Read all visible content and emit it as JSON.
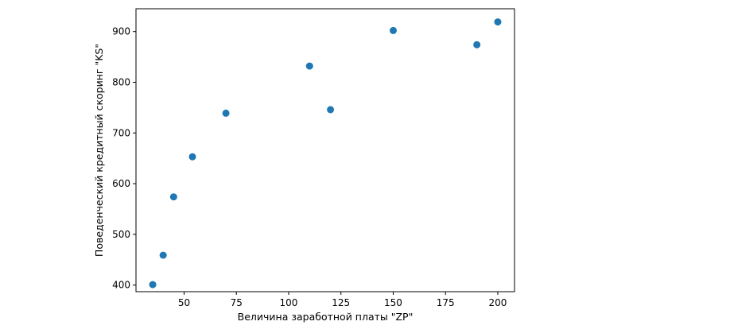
{
  "chart_data": {
    "type": "scatter",
    "title": "",
    "xlabel": "Величина заработной платы \"ZP\"",
    "ylabel": "Поведенческий кредитный скоринг \"KS\"",
    "xlim": [
      27,
      208
    ],
    "ylim": [
      387,
      945
    ],
    "xticks": [
      50,
      75,
      100,
      125,
      150,
      175,
      200
    ],
    "yticks": [
      400,
      500,
      600,
      700,
      800,
      900
    ],
    "grid": false,
    "legend": "none",
    "marker_color": "#1f77b4",
    "series": [
      {
        "x": [
          35,
          40,
          45,
          54,
          70,
          110,
          120,
          150,
          190,
          200
        ],
        "y": [
          401,
          459,
          574,
          653,
          739,
          832,
          746,
          902,
          874,
          919
        ]
      }
    ]
  }
}
